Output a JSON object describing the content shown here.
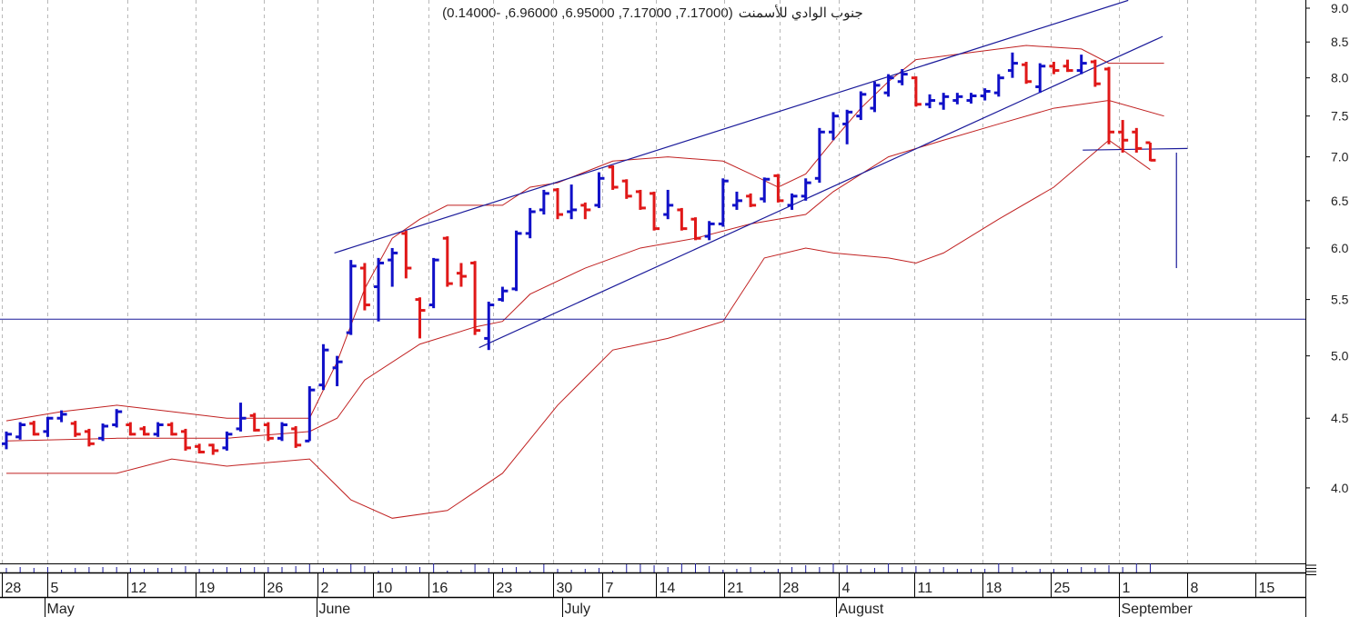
{
  "title": {
    "name": "جنوب الوادي للأسمنت",
    "values": "(7.17000, 7.17000, 6.95000, 6.96000, -0.14000)"
  },
  "colors": {
    "up": "#1010c8",
    "down": "#e01818",
    "bands": "#c02020",
    "lines": "#1a1a9a",
    "grid": "#b8b8b8"
  },
  "chart_data": {
    "type": "ohlc",
    "title": "جنوب الوادي للأسمنت (7.17000, 7.17000, 6.95000, 6.96000, -0.14000)",
    "yscale": "log",
    "ylim": [
      3.4,
      9.1
    ],
    "yticks": [
      "9.0",
      "8.5",
      "8.0",
      "7.5",
      "7.0",
      "6.5",
      "6.0",
      "5.5",
      "5.0",
      "4.5",
      "4.0"
    ],
    "xlim": [
      -0.5,
      94
    ],
    "date_ticks": [
      {
        "label": "28",
        "i": -0.1
      },
      {
        "label": "5",
        "i": 3.2
      },
      {
        "label": "12",
        "i": 9
      },
      {
        "label": "19",
        "i": 13.9
      },
      {
        "label": "26",
        "i": 18.9
      },
      {
        "label": "2",
        "i": 22.8
      },
      {
        "label": "10",
        "i": 26.8
      },
      {
        "label": "16",
        "i": 30.8
      },
      {
        "label": "23",
        "i": 35.5
      },
      {
        "label": "30",
        "i": 39.9
      },
      {
        "label": "7",
        "i": 43.4
      },
      {
        "label": "14",
        "i": 47.3
      },
      {
        "label": "21",
        "i": 52.3
      },
      {
        "label": "28",
        "i": 56.3
      },
      {
        "label": "4",
        "i": 60.6
      },
      {
        "label": "11",
        "i": 66.1
      },
      {
        "label": "18",
        "i": 71
      },
      {
        "label": "25",
        "i": 76
      },
      {
        "label": "1",
        "i": 80.9
      },
      {
        "label": "8",
        "i": 85.9
      },
      {
        "label": "15",
        "i": 90.8
      }
    ],
    "month_ticks": [
      {
        "label": "May",
        "i": 3
      },
      {
        "label": "June",
        "i": 22.7
      },
      {
        "label": "July",
        "i": 40.5
      },
      {
        "label": "August",
        "i": 60.4
      },
      {
        "label": "September",
        "i": 80.9
      }
    ],
    "bars_ohlc": [
      [
        4.31,
        4.4,
        4.27,
        4.38
      ],
      [
        4.36,
        4.47,
        4.34,
        4.45
      ],
      [
        4.46,
        4.48,
        4.37,
        4.38
      ],
      [
        4.4,
        4.51,
        4.36,
        4.5
      ],
      [
        4.5,
        4.56,
        4.47,
        4.53
      ],
      [
        4.46,
        4.48,
        4.36,
        4.38
      ],
      [
        4.4,
        4.42,
        4.29,
        4.31
      ],
      [
        4.35,
        4.46,
        4.33,
        4.44
      ],
      [
        4.45,
        4.57,
        4.43,
        4.55
      ],
      [
        4.45,
        4.47,
        4.37,
        4.38
      ],
      [
        4.42,
        4.44,
        4.37,
        4.38
      ],
      [
        4.38,
        4.47,
        4.36,
        4.45
      ],
      [
        4.45,
        4.47,
        4.37,
        4.38
      ],
      [
        4.4,
        4.42,
        4.26,
        4.28
      ],
      [
        4.29,
        4.31,
        4.24,
        4.25
      ],
      [
        4.3,
        4.31,
        4.23,
        4.26
      ],
      [
        4.28,
        4.4,
        4.26,
        4.38
      ],
      [
        4.42,
        4.62,
        4.4,
        4.5
      ],
      [
        4.52,
        4.54,
        4.4,
        4.41
      ],
      [
        4.45,
        4.47,
        4.33,
        4.35
      ],
      [
        4.35,
        4.47,
        4.33,
        4.45
      ],
      [
        4.42,
        4.44,
        4.28,
        4.3
      ],
      [
        4.33,
        4.75,
        4.33,
        4.72
      ],
      [
        4.76,
        5.1,
        4.72,
        5.05
      ],
      [
        4.9,
        5.0,
        4.75,
        4.95
      ],
      [
        5.2,
        5.88,
        5.18,
        5.82
      ],
      [
        5.8,
        5.85,
        5.4,
        5.45
      ],
      [
        5.62,
        5.9,
        5.3,
        5.85
      ],
      [
        5.88,
        6.0,
        5.62,
        5.95
      ],
      [
        6.15,
        6.18,
        5.7,
        5.8
      ],
      [
        5.5,
        5.52,
        5.15,
        5.4
      ],
      [
        5.45,
        5.9,
        5.42,
        5.88
      ],
      [
        6.1,
        6.12,
        5.62,
        5.65
      ],
      [
        5.75,
        5.85,
        5.62,
        5.72
      ],
      [
        5.85,
        5.87,
        5.18,
        5.22
      ],
      [
        5.15,
        5.48,
        5.05,
        5.45
      ],
      [
        5.5,
        5.62,
        5.48,
        5.58
      ],
      [
        5.6,
        6.18,
        5.58,
        6.15
      ],
      [
        6.15,
        6.42,
        6.1,
        6.38
      ],
      [
        6.4,
        6.62,
        6.35,
        6.58
      ],
      [
        6.62,
        6.64,
        6.3,
        6.35
      ],
      [
        6.38,
        6.68,
        6.3,
        6.4
      ],
      [
        6.45,
        6.48,
        6.3,
        6.4
      ],
      [
        6.45,
        6.82,
        6.42,
        6.75
      ],
      [
        6.88,
        6.9,
        6.62,
        6.65
      ],
      [
        6.72,
        6.74,
        6.52,
        6.55
      ],
      [
        6.6,
        6.62,
        6.4,
        6.42
      ],
      [
        6.58,
        6.6,
        6.18,
        6.2
      ],
      [
        6.35,
        6.62,
        6.3,
        6.45
      ],
      [
        6.4,
        6.42,
        6.18,
        6.2
      ],
      [
        6.3,
        6.32,
        6.08,
        6.1
      ],
      [
        6.12,
        6.28,
        6.08,
        6.25
      ],
      [
        6.25,
        6.75,
        6.22,
        6.72
      ],
      [
        6.45,
        6.6,
        6.4,
        6.5
      ],
      [
        6.55,
        6.58,
        6.43,
        6.45
      ],
      [
        6.52,
        6.76,
        6.48,
        6.74
      ],
      [
        6.78,
        6.8,
        6.48,
        6.5
      ],
      [
        6.45,
        6.58,
        6.4,
        6.55
      ],
      [
        6.55,
        6.75,
        6.5,
        6.7
      ],
      [
        6.75,
        7.35,
        6.7,
        7.3
      ],
      [
        7.3,
        7.55,
        7.2,
        7.5
      ],
      [
        7.4,
        7.58,
        7.15,
        7.55
      ],
      [
        7.5,
        7.82,
        7.45,
        7.78
      ],
      [
        7.6,
        7.95,
        7.55,
        7.9
      ],
      [
        7.8,
        8.05,
        7.75,
        8.0
      ],
      [
        7.95,
        8.12,
        7.9,
        8.05
      ],
      [
        8.0,
        8.02,
        7.62,
        7.65
      ],
      [
        7.65,
        7.78,
        7.6,
        7.7
      ],
      [
        7.66,
        7.8,
        7.58,
        7.75
      ],
      [
        7.7,
        7.8,
        7.65,
        7.75
      ],
      [
        7.7,
        7.8,
        7.66,
        7.76
      ],
      [
        7.76,
        7.86,
        7.7,
        7.82
      ],
      [
        7.8,
        8.05,
        7.75,
        8.0
      ],
      [
        8.1,
        8.35,
        8.0,
        8.2
      ],
      [
        8.18,
        8.22,
        7.92,
        7.95
      ],
      [
        7.88,
        8.2,
        7.8,
        8.16
      ],
      [
        8.16,
        8.22,
        8.05,
        8.1
      ],
      [
        8.16,
        8.25,
        8.08,
        8.1
      ],
      [
        8.1,
        8.32,
        8.05,
        8.2
      ],
      [
        8.22,
        8.25,
        7.88,
        7.92
      ],
      [
        8.12,
        8.15,
        7.15,
        7.3
      ],
      [
        7.3,
        7.45,
        7.05,
        7.2
      ],
      [
        7.3,
        7.35,
        7.05,
        7.1
      ],
      [
        7.17,
        7.17,
        6.95,
        6.96
      ]
    ],
    "bollinger": {
      "upper": [
        [
          0,
          4.48
        ],
        [
          4,
          4.55
        ],
        [
          8,
          4.6
        ],
        [
          12,
          4.55
        ],
        [
          16,
          4.5
        ],
        [
          20,
          4.5
        ],
        [
          22,
          4.5
        ],
        [
          24,
          4.95
        ],
        [
          26,
          5.6
        ],
        [
          28,
          6.1
        ],
        [
          30,
          6.3
        ],
        [
          32,
          6.45
        ],
        [
          34,
          6.45
        ],
        [
          36,
          6.45
        ],
        [
          38,
          6.65
        ],
        [
          40,
          6.7
        ],
        [
          44,
          6.95
        ],
        [
          48,
          7.0
        ],
        [
          52,
          6.95
        ],
        [
          54,
          6.8
        ],
        [
          56,
          6.65
        ],
        [
          58,
          6.8
        ],
        [
          60,
          7.2
        ],
        [
          62,
          7.6
        ],
        [
          64,
          7.95
        ],
        [
          66,
          8.25
        ],
        [
          70,
          8.35
        ],
        [
          74,
          8.45
        ],
        [
          78,
          8.4
        ],
        [
          80,
          8.2
        ],
        [
          84,
          8.2
        ]
      ],
      "middle": [
        [
          0,
          4.33
        ],
        [
          8,
          4.35
        ],
        [
          16,
          4.35
        ],
        [
          22,
          4.4
        ],
        [
          24,
          4.5
        ],
        [
          26,
          4.8
        ],
        [
          30,
          5.1
        ],
        [
          34,
          5.25
        ],
        [
          36,
          5.3
        ],
        [
          38,
          5.55
        ],
        [
          42,
          5.8
        ],
        [
          46,
          6.0
        ],
        [
          50,
          6.1
        ],
        [
          54,
          6.25
        ],
        [
          58,
          6.35
        ],
        [
          60,
          6.6
        ],
        [
          64,
          7.0
        ],
        [
          68,
          7.2
        ],
        [
          72,
          7.4
        ],
        [
          76,
          7.6
        ],
        [
          80,
          7.7
        ],
        [
          84,
          7.5
        ]
      ],
      "lower": [
        [
          0,
          4.1
        ],
        [
          8,
          4.1
        ],
        [
          12,
          4.2
        ],
        [
          16,
          4.15
        ],
        [
          22,
          4.2
        ],
        [
          25,
          3.92
        ],
        [
          28,
          3.8
        ],
        [
          32,
          3.85
        ],
        [
          36,
          4.1
        ],
        [
          40,
          4.6
        ],
        [
          44,
          5.05
        ],
        [
          48,
          5.15
        ],
        [
          52,
          5.3
        ],
        [
          55,
          5.9
        ],
        [
          58,
          6.0
        ],
        [
          60,
          5.95
        ],
        [
          64,
          5.9
        ],
        [
          66,
          5.85
        ],
        [
          68,
          5.95
        ],
        [
          72,
          6.3
        ],
        [
          76,
          6.65
        ],
        [
          80,
          7.2
        ],
        [
          83,
          6.85
        ]
      ]
    },
    "trendlines": [
      {
        "name": "channel-upper",
        "from": [
          23.8,
          5.95
        ],
        "to": [
          81.4,
          9.12
        ]
      },
      {
        "name": "channel-lower",
        "from": [
          34.3,
          5.07
        ],
        "to": [
          83.9,
          8.58
        ]
      },
      {
        "name": "short-line",
        "from": [
          78.1,
          7.08
        ],
        "to": [
          85.7,
          7.1
        ]
      },
      {
        "name": "vertical-line",
        "from": [
          84.9,
          7.05
        ],
        "to": [
          84.9,
          5.8
        ]
      }
    ],
    "hline": 5.32
  }
}
